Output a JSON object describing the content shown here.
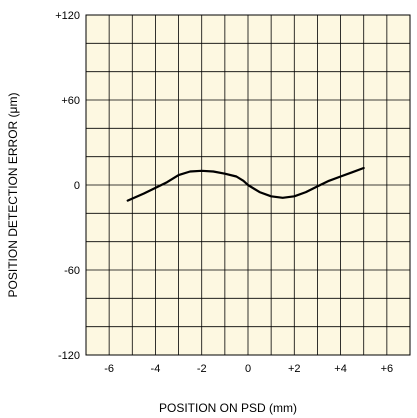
{
  "chart_data": {
    "type": "line",
    "title": "",
    "xlabel": "POSITION ON PSD (mm)",
    "ylabel": "POSITION DETECTION ERROR (μm)",
    "xlim": [
      -7,
      7
    ],
    "ylim": [
      -120,
      120
    ],
    "x_ticks": [
      -6,
      -4,
      -2,
      0,
      2,
      4,
      6
    ],
    "x_tick_labels": [
      "-6",
      "-4",
      "-2",
      "0",
      "+2",
      "+4",
      "+6"
    ],
    "y_ticks": [
      -120,
      -60,
      0,
      60,
      120
    ],
    "y_tick_labels": [
      "-120",
      "-60",
      "0",
      "+60",
      "+120"
    ],
    "grid": true,
    "grid_step_x": 1,
    "grid_step_y": 20,
    "colors": {
      "plot_background": "#fdf8e1",
      "grid": "#000000",
      "line": "#000000"
    },
    "series": [
      {
        "x": [
          -5.2,
          -4.5,
          -3.5,
          -3.0,
          -2.5,
          -2.0,
          -1.5,
          -1.0,
          -0.5,
          -0.2,
          0.0,
          0.5,
          1.0,
          1.5,
          2.0,
          2.5,
          3.0,
          3.5,
          4.0,
          4.5,
          5.0
        ],
        "y": [
          -11,
          -6,
          2,
          7,
          9.5,
          10,
          9.5,
          8,
          6,
          3,
          0,
          -5,
          -8,
          -9,
          -8,
          -5,
          -1,
          3,
          6,
          9,
          12
        ]
      }
    ]
  }
}
